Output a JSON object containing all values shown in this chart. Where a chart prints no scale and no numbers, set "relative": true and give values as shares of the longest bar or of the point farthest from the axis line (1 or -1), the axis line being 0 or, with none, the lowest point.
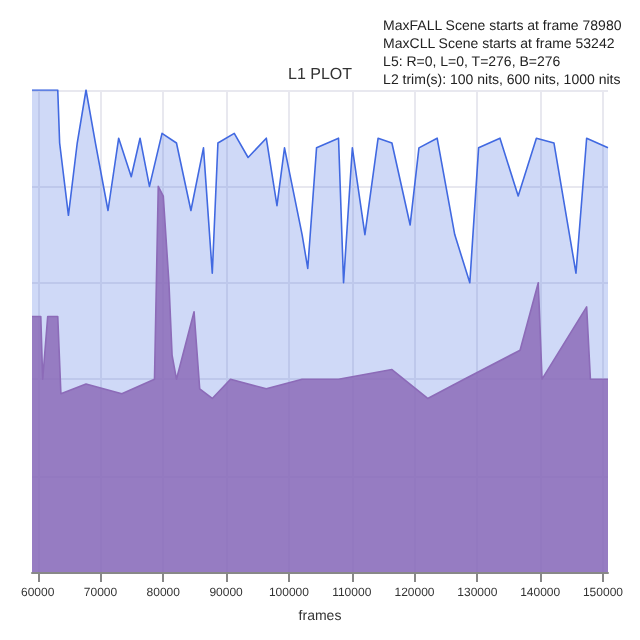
{
  "chart_data": {
    "type": "area",
    "title": "L1 PLOT",
    "xlabel": "frames",
    "relative": true,
    "grid": true,
    "marker": "none",
    "annotations": [
      "MaxFALL Scene starts at frame 78980",
      "MaxCLL Scene starts at frame 53242",
      "L5: R=0, L=0, T=276, B=276",
      "L2 trim(s): 100 nits, 600 nits, 1000 nits"
    ],
    "xlim": [
      59100,
      150800
    ],
    "xticks": [
      60000,
      70000,
      80000,
      90000,
      100000,
      110000,
      120000,
      130000,
      140000,
      150000
    ],
    "series": [
      {
        "color": "#4169e1",
        "x": [
          59100,
          63200,
          63500,
          64900,
          66300,
          67700,
          69200,
          71200,
          72900,
          74900,
          76300,
          77800,
          79800,
          82100,
          84400,
          86400,
          87800,
          88700,
          91300,
          93500,
          96400,
          98100,
          99300,
          102100,
          103000,
          104400,
          107900,
          108700,
          110100,
          112100,
          114200,
          116400,
          119300,
          120700,
          123600,
          126400,
          128800,
          130200,
          133600,
          136500,
          139400,
          142200,
          145700,
          147400,
          150800
        ],
        "values": [
          1.0,
          1.0,
          0.89,
          0.74,
          0.89,
          1.0,
          0.89,
          0.75,
          0.9,
          0.82,
          0.9,
          0.8,
          0.91,
          0.89,
          0.75,
          0.88,
          0.62,
          0.89,
          0.91,
          0.86,
          0.9,
          0.76,
          0.88,
          0.7,
          0.63,
          0.88,
          0.9,
          0.6,
          0.88,
          0.7,
          0.9,
          0.89,
          0.72,
          0.88,
          0.9,
          0.7,
          0.6,
          0.88,
          0.9,
          0.78,
          0.9,
          0.89,
          0.62,
          0.9,
          0.88
        ]
      },
      {
        "color": "#8c6bb8",
        "x": [
          59100,
          60500,
          60800,
          61600,
          63200,
          63700,
          67700,
          73400,
          78600,
          79200,
          80000,
          80900,
          81400,
          82100,
          84900,
          85800,
          87800,
          90700,
          96400,
          102100,
          107900,
          116400,
          122100,
          127900,
          136800,
          139700,
          140300,
          147400,
          148000,
          150800
        ],
        "values": [
          0.53,
          0.53,
          0.4,
          0.53,
          0.53,
          0.37,
          0.39,
          0.37,
          0.4,
          0.8,
          0.78,
          0.6,
          0.45,
          0.4,
          0.54,
          0.38,
          0.36,
          0.4,
          0.38,
          0.4,
          0.4,
          0.42,
          0.36,
          0.4,
          0.46,
          0.6,
          0.4,
          0.55,
          0.4,
          0.4
        ]
      }
    ]
  }
}
